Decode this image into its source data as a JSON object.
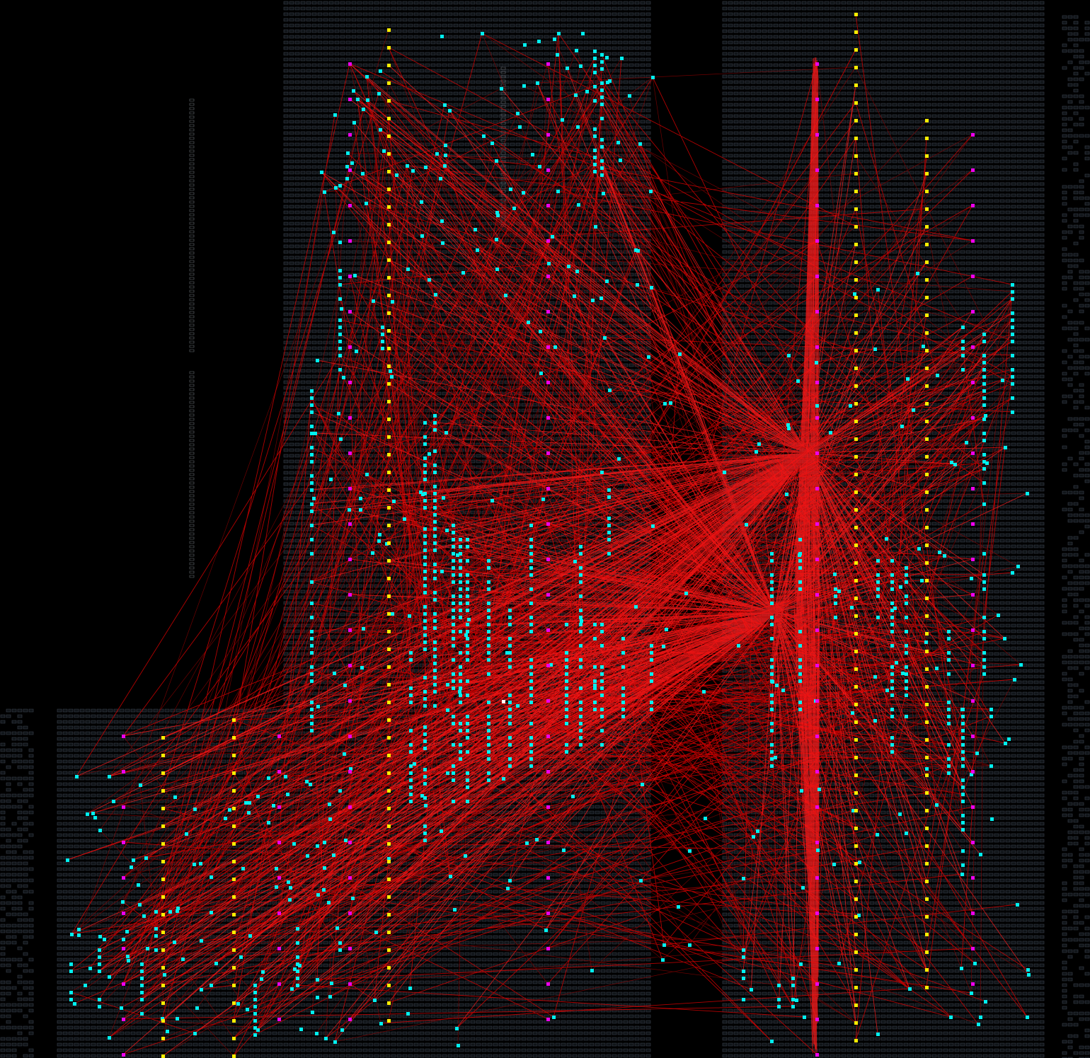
{
  "view": {
    "kind": "fpga-placement-routing-view",
    "colors": {
      "background": "#000000",
      "tile_outline": "#3c4450",
      "tile_fill": "#101418",
      "io_outline": "#6a6f75",
      "net_line": "#d00000",
      "net_line_bright": "#ff1a1a",
      "logic_cell": "#00f0f0",
      "io_pad_yellow": "#ffee00",
      "io_pad_magenta": "#ee00ee",
      "highlight_cell": "#ffffff"
    },
    "legend": {
      "logic_cell": "cyan-square-icon",
      "io_pad_a": "yellow-square-icon",
      "io_pad_b": "magenta-square-icon",
      "net": "red-line-icon"
    },
    "regions": [
      {
        "name": "upper-fabric"
      },
      {
        "name": "lower-left-fabric"
      },
      {
        "name": "right-fabric"
      },
      {
        "name": "left-io-column"
      },
      {
        "name": "far-right-io-column"
      }
    ],
    "pad_columns": [
      {
        "name": "yellow-pad-column-1"
      },
      {
        "name": "magenta-pad-column-1"
      },
      {
        "name": "magenta-pad-column-2"
      },
      {
        "name": "yellow-pad-column-2"
      },
      {
        "name": "magenta-pad-column-3"
      },
      {
        "name": "yellow-pad-column-3"
      },
      {
        "name": "magenta-pad-column-4"
      }
    ],
    "hotspots": [
      {
        "name": "routing-hub-east"
      },
      {
        "name": "routing-hub-center"
      }
    ]
  }
}
